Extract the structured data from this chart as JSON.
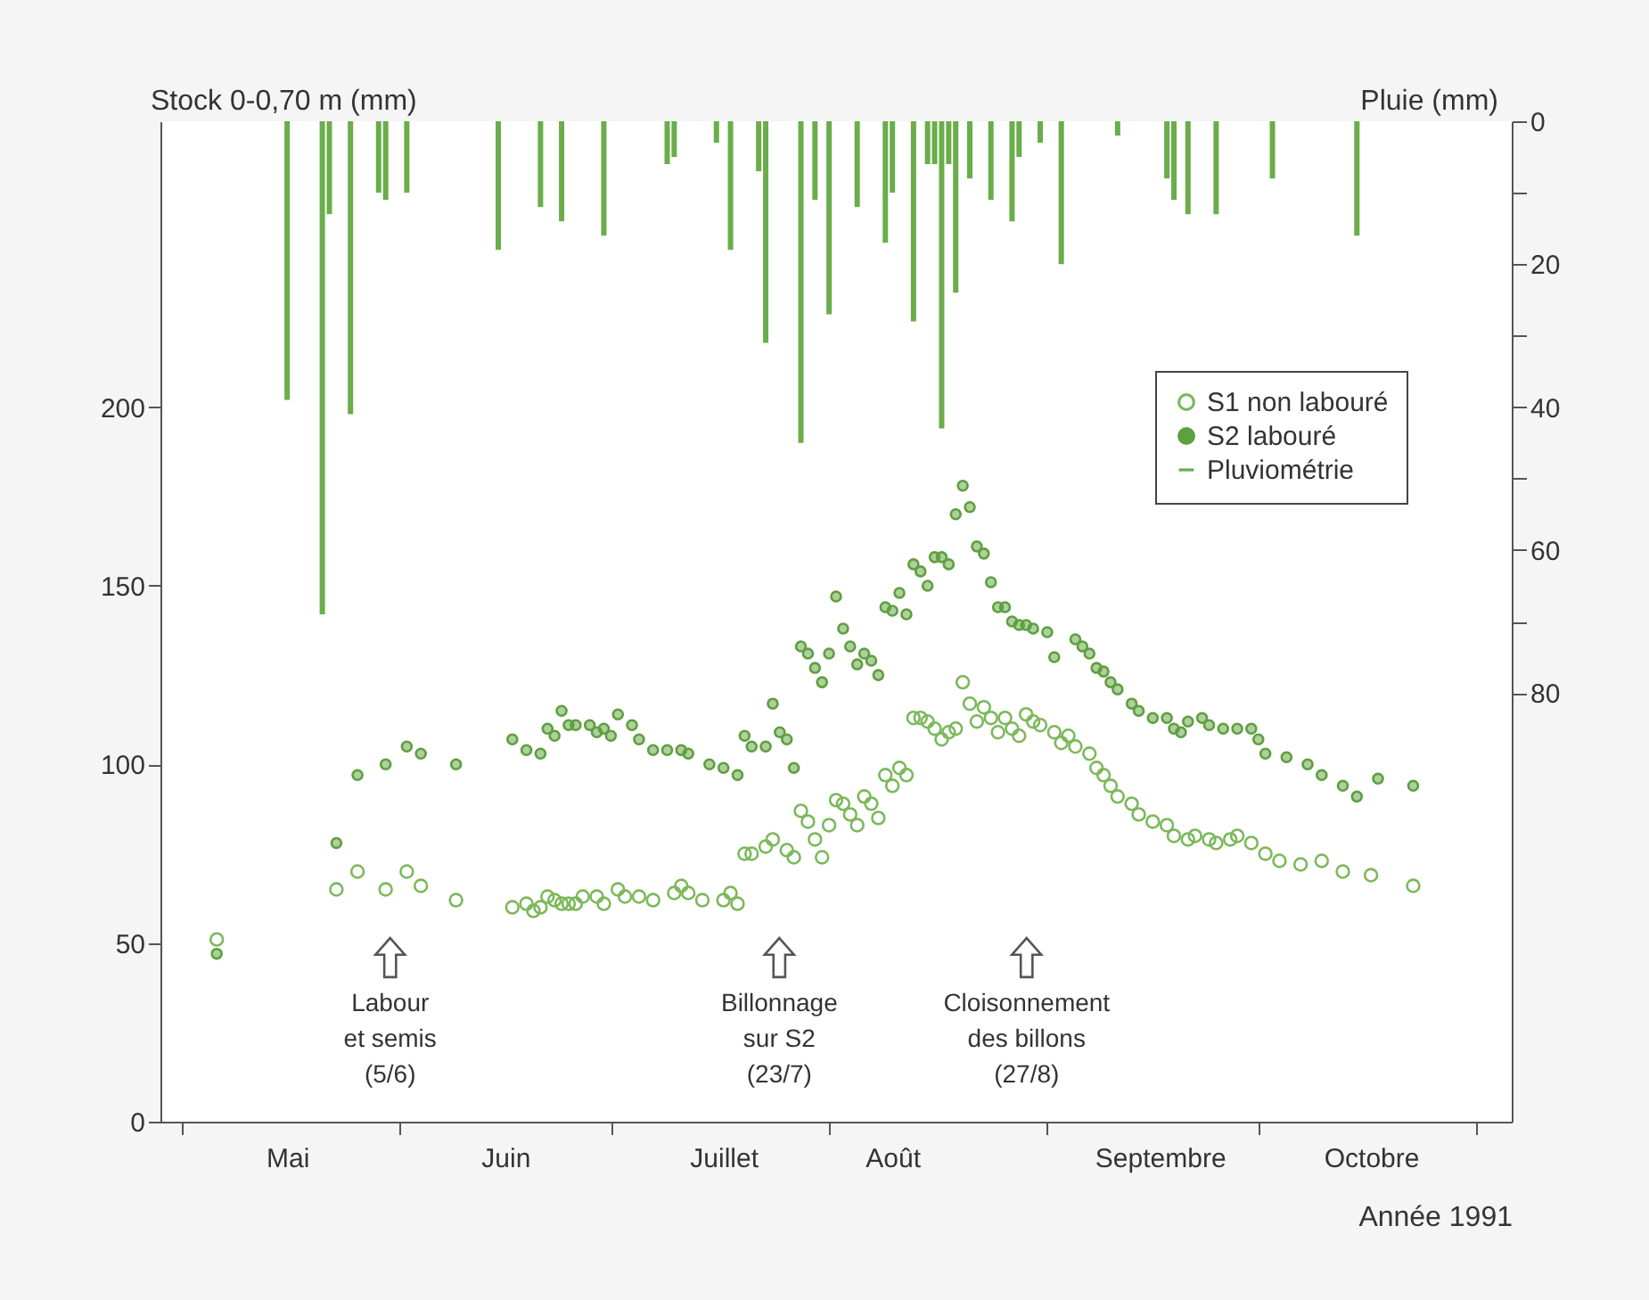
{
  "chart_data": {
    "type": "scatter",
    "xlabel": "Année 1991",
    "ylabel": "Stock 0-0,70 m (mm)",
    "y2label": "Pluie (mm)",
    "xlim": [
      "1991-04-28",
      "1991-11-06"
    ],
    "xticks": [
      {
        "value": "1991-05-01",
        "label": null
      },
      {
        "value": "1991-05-16",
        "label": "Mai"
      },
      {
        "value": "1991-06-01",
        "label": null
      },
      {
        "value": "1991-06-16",
        "label": "Juin"
      },
      {
        "value": "1991-07-01",
        "label": null
      },
      {
        "value": "1991-07-17",
        "label": "Juillet"
      },
      {
        "value": "1991-08-01",
        "label": null
      },
      {
        "value": "1991-08-10",
        "label": "Août"
      },
      {
        "value": "1991-09-01",
        "label": null
      },
      {
        "value": "1991-09-17",
        "label": "Septembre"
      },
      {
        "value": "1991-10-01",
        "label": null
      },
      {
        "value": "1991-10-17",
        "label": "Octobre"
      },
      {
        "value": "1991-11-01",
        "label": null
      }
    ],
    "ylim": [
      0,
      280
    ],
    "yticks": [
      0,
      50,
      100,
      150,
      200
    ],
    "y2lim": [
      140,
      0
    ],
    "y2ticks": [
      0,
      {
        "value": 10,
        "label": null
      },
      20,
      {
        "value": 30,
        "label": null
      },
      40,
      {
        "value": 50,
        "label": null
      },
      60,
      {
        "value": 70,
        "label": null
      },
      80
    ],
    "legend": "top right",
    "marker": "circle",
    "series": [
      {
        "name": "S1 non labouré",
        "color": "#7cb85c",
        "x": [
          "1991-05-06",
          "1991-05-23",
          "1991-05-26",
          "1991-05-30",
          "1991-06-02",
          "1991-06-04",
          "1991-06-09",
          "1991-06-17",
          "1991-06-19",
          "1991-06-20",
          "1991-06-21",
          "1991-06-22",
          "1991-06-23",
          "1991-06-24",
          "1991-06-25",
          "1991-06-26",
          "1991-06-27",
          "1991-06-29",
          "1991-06-30",
          "1991-07-02",
          "1991-07-03",
          "1991-07-05",
          "1991-07-07",
          "1991-07-10",
          "1991-07-11",
          "1991-07-12",
          "1991-07-14",
          "1991-07-17",
          "1991-07-18",
          "1991-07-19",
          "1991-07-20",
          "1991-07-21",
          "1991-07-23",
          "1991-07-24",
          "1991-07-26",
          "1991-07-27",
          "1991-07-28",
          "1991-07-29",
          "1991-07-30",
          "1991-07-31",
          "1991-08-01",
          "1991-08-02",
          "1991-08-03",
          "1991-08-04",
          "1991-08-05",
          "1991-08-06",
          "1991-08-07",
          "1991-08-08",
          "1991-08-09",
          "1991-08-10",
          "1991-08-11",
          "1991-08-12",
          "1991-08-13",
          "1991-08-14",
          "1991-08-15",
          "1991-08-16",
          "1991-08-17",
          "1991-08-18",
          "1991-08-19",
          "1991-08-20",
          "1991-08-21",
          "1991-08-22",
          "1991-08-23",
          "1991-08-24",
          "1991-08-25",
          "1991-08-26",
          "1991-08-27",
          "1991-08-28",
          "1991-08-29",
          "1991-08-30",
          "1991-08-31",
          "1991-09-02",
          "1991-09-03",
          "1991-09-04",
          "1991-09-05",
          "1991-09-07",
          "1991-09-08",
          "1991-09-09",
          "1991-09-10",
          "1991-09-11",
          "1991-09-13",
          "1991-09-14",
          "1991-09-16",
          "1991-09-18",
          "1991-09-19",
          "1991-09-21",
          "1991-09-22",
          "1991-09-24",
          "1991-09-25",
          "1991-09-27",
          "1991-09-28",
          "1991-09-30",
          "1991-10-02",
          "1991-10-04",
          "1991-10-07",
          "1991-10-10",
          "1991-10-13",
          "1991-10-17",
          "1991-10-23"
        ],
        "values": [
          51,
          65,
          70,
          65,
          70,
          66,
          62,
          60,
          61,
          59,
          60,
          63,
          62,
          61,
          61,
          61,
          63,
          63,
          61,
          65,
          63,
          63,
          62,
          64,
          66,
          64,
          62,
          62,
          64,
          61,
          75,
          75,
          77,
          79,
          76,
          74,
          87,
          84,
          79,
          74,
          83,
          90,
          89,
          86,
          83,
          91,
          89,
          85,
          97,
          94,
          99,
          97,
          113,
          113,
          112,
          110,
          107,
          109,
          110,
          123,
          117,
          112,
          116,
          113,
          109,
          113,
          110,
          108,
          114,
          112,
          111,
          109,
          106,
          108,
          105,
          103,
          99,
          97,
          94,
          91,
          89,
          86,
          84,
          83,
          80,
          79,
          80,
          79,
          78,
          79,
          80,
          78,
          75,
          73,
          72,
          73,
          70,
          69,
          66
        ]
      },
      {
        "name": "S2 labouré",
        "color": "#5e9f3e",
        "x": [
          "1991-05-06",
          "1991-05-23",
          "1991-05-26",
          "1991-05-30",
          "1991-06-02",
          "1991-06-04",
          "1991-06-09",
          "1991-06-17",
          "1991-06-19",
          "1991-06-21",
          "1991-06-22",
          "1991-06-23",
          "1991-06-24",
          "1991-06-25",
          "1991-06-26",
          "1991-06-28",
          "1991-06-29",
          "1991-06-30",
          "1991-07-01",
          "1991-07-02",
          "1991-07-04",
          "1991-07-05",
          "1991-07-07",
          "1991-07-09",
          "1991-07-11",
          "1991-07-12",
          "1991-07-15",
          "1991-07-17",
          "1991-07-19",
          "1991-07-20",
          "1991-07-21",
          "1991-07-23",
          "1991-07-24",
          "1991-07-25",
          "1991-07-26",
          "1991-07-27",
          "1991-07-28",
          "1991-07-29",
          "1991-07-30",
          "1991-07-31",
          "1991-08-01",
          "1991-08-02",
          "1991-08-03",
          "1991-08-04",
          "1991-08-05",
          "1991-08-06",
          "1991-08-07",
          "1991-08-08",
          "1991-08-09",
          "1991-08-10",
          "1991-08-11",
          "1991-08-12",
          "1991-08-13",
          "1991-08-14",
          "1991-08-15",
          "1991-08-16",
          "1991-08-17",
          "1991-08-18",
          "1991-08-19",
          "1991-08-20",
          "1991-08-21",
          "1991-08-22",
          "1991-08-23",
          "1991-08-24",
          "1991-08-25",
          "1991-08-26",
          "1991-08-27",
          "1991-08-28",
          "1991-08-29",
          "1991-08-30",
          "1991-09-01",
          "1991-09-02",
          "1991-09-05",
          "1991-09-06",
          "1991-09-07",
          "1991-09-08",
          "1991-09-09",
          "1991-09-10",
          "1991-09-11",
          "1991-09-13",
          "1991-09-14",
          "1991-09-16",
          "1991-09-18",
          "1991-09-19",
          "1991-09-20",
          "1991-09-21",
          "1991-09-23",
          "1991-09-24",
          "1991-09-26",
          "1991-09-28",
          "1991-09-30",
          "1991-10-01",
          "1991-10-02",
          "1991-10-05",
          "1991-10-08",
          "1991-10-10",
          "1991-10-13",
          "1991-10-15",
          "1991-10-18",
          "1991-10-23"
        ],
        "values": [
          47,
          78,
          97,
          100,
          105,
          103,
          100,
          107,
          104,
          103,
          110,
          108,
          115,
          111,
          111,
          111,
          109,
          110,
          108,
          114,
          111,
          107,
          104,
          104,
          104,
          103,
          100,
          99,
          97,
          108,
          105,
          105,
          117,
          109,
          107,
          99,
          133,
          131,
          127,
          123,
          131,
          147,
          138,
          133,
          128,
          131,
          129,
          125,
          144,
          143,
          148,
          142,
          156,
          154,
          150,
          158,
          158,
          156,
          170,
          178,
          172,
          161,
          159,
          151,
          144,
          144,
          140,
          139,
          139,
          138,
          137,
          130,
          135,
          133,
          131,
          127,
          126,
          123,
          121,
          117,
          115,
          113,
          113,
          110,
          109,
          112,
          113,
          111,
          110,
          110,
          110,
          107,
          103,
          102,
          100,
          97,
          94,
          91,
          96,
          94
        ]
      },
      {
        "name": "Pluviométrie",
        "type": "bar",
        "axis": "y2",
        "color": "#6aad4a",
        "x": [
          "1991-05-16",
          "1991-05-21",
          "1991-05-22",
          "1991-05-25",
          "1991-05-29",
          "1991-05-30",
          "1991-06-02",
          "1991-06-15",
          "1991-06-21",
          "1991-06-24",
          "1991-06-30",
          "1991-07-09",
          "1991-07-10",
          "1991-07-16",
          "1991-07-18",
          "1991-07-22",
          "1991-07-23",
          "1991-07-28",
          "1991-07-30",
          "1991-08-01",
          "1991-08-05",
          "1991-08-09",
          "1991-08-10",
          "1991-08-13",
          "1991-08-15",
          "1991-08-16",
          "1991-08-17",
          "1991-08-18",
          "1991-08-19",
          "1991-08-21",
          "1991-08-24",
          "1991-08-27",
          "1991-08-28",
          "1991-08-31",
          "1991-09-03",
          "1991-09-11",
          "1991-09-18",
          "1991-09-19",
          "1991-09-21",
          "1991-09-25",
          "1991-10-03",
          "1991-10-15"
        ],
        "values": [
          39,
          69,
          13,
          41,
          10,
          11,
          10,
          18,
          12,
          14,
          16,
          6,
          5,
          3,
          18,
          7,
          31,
          45,
          11,
          27,
          12,
          17,
          10,
          28,
          6,
          6,
          43,
          6,
          24,
          8,
          11,
          14,
          5,
          3,
          20,
          2,
          8,
          11,
          13,
          13,
          8,
          16
        ]
      }
    ],
    "annotations": [
      "Labour\net semis\n(5/6)",
      "Billonnage\nsur S2\n(23/7)",
      "Cloisonnement\ndes billons\n(27/8)"
    ]
  }
}
